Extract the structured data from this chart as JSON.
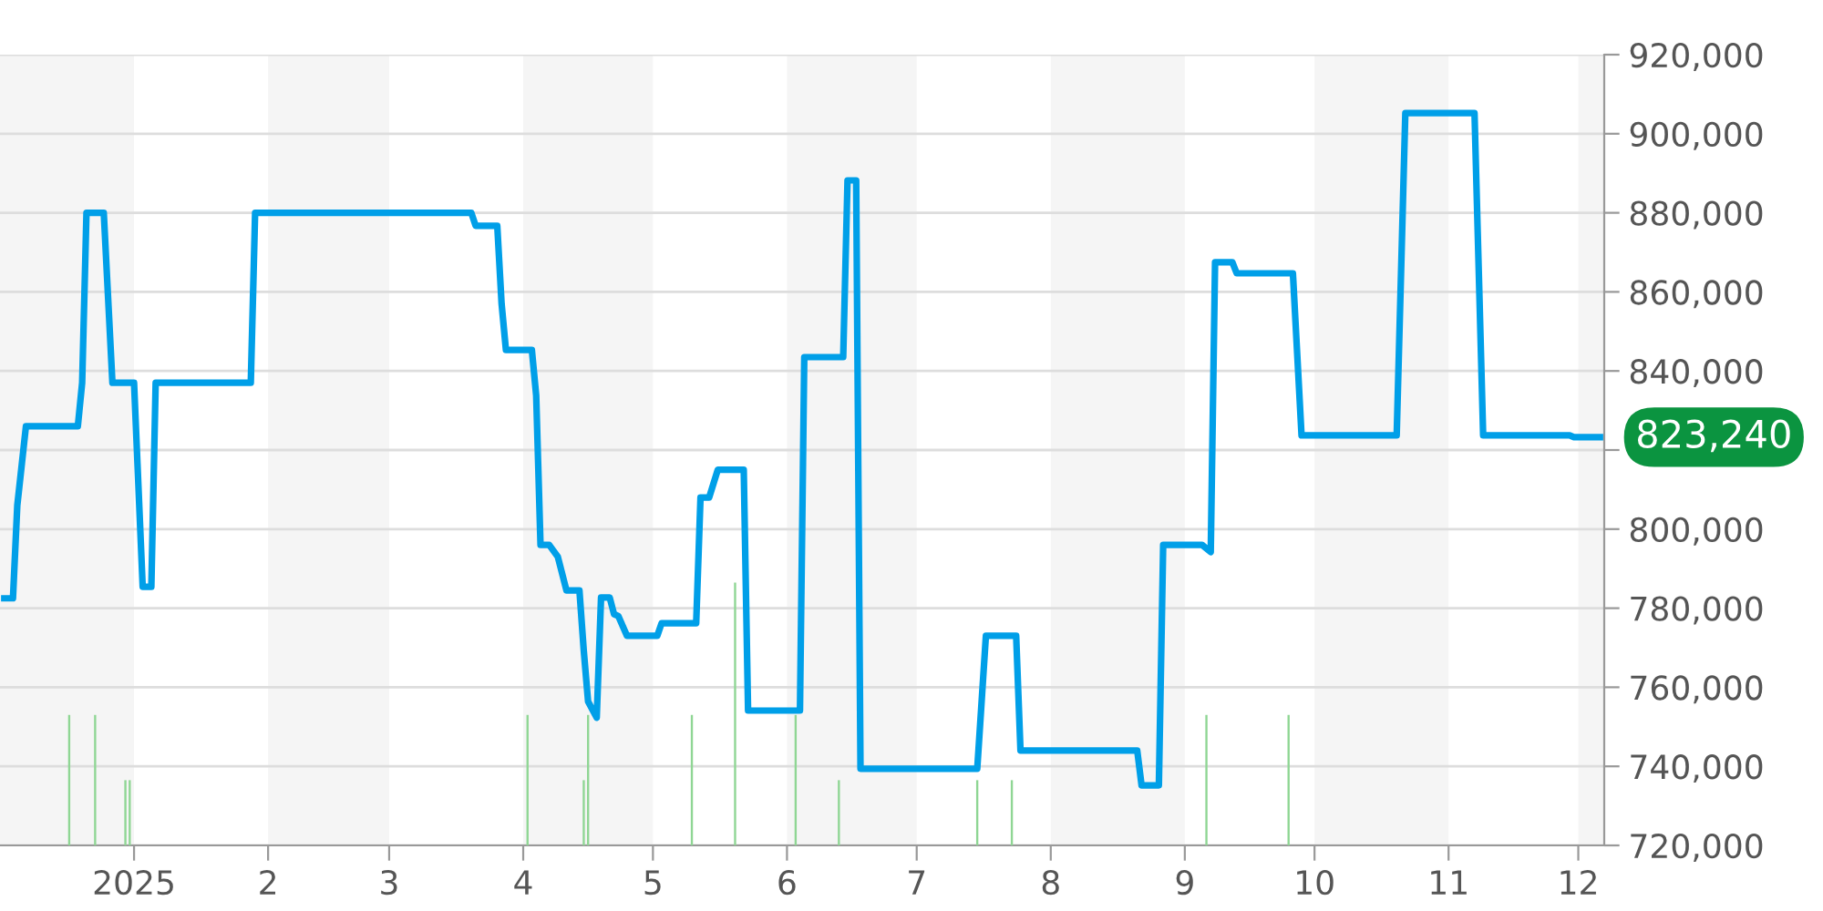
{
  "chart_data": {
    "type": "line",
    "x": [
      "2024-12-02",
      "2024-12-04",
      "2024-12-05",
      "2024-12-07",
      "2024-12-19",
      "2024-12-20",
      "2024-12-21",
      "2024-12-25",
      "2024-12-27",
      "2025-01-01",
      "2025-01-03",
      "2025-01-05",
      "2025-01-06",
      "2025-01-28",
      "2025-01-29",
      "2025-03-20",
      "2025-03-21",
      "2025-03-26",
      "2025-03-27",
      "2025-03-28",
      "2025-04-03",
      "2025-04-04",
      "2025-04-05",
      "2025-04-07",
      "2025-04-09",
      "2025-04-11",
      "2025-04-14",
      "2025-04-15",
      "2025-04-16",
      "2025-04-18",
      "2025-04-19",
      "2025-04-21",
      "2025-04-22",
      "2025-04-23",
      "2025-04-25",
      "2025-05-02",
      "2025-05-03",
      "2025-05-11",
      "2025-05-12",
      "2025-05-14",
      "2025-05-16",
      "2025-05-22",
      "2025-05-23",
      "2025-06-04",
      "2025-06-05",
      "2025-06-14",
      "2025-06-15",
      "2025-06-17",
      "2025-06-18",
      "2025-07-15",
      "2025-07-17",
      "2025-07-24",
      "2025-07-25",
      "2025-08-21",
      "2025-08-22",
      "2025-08-26",
      "2025-08-27",
      "2025-09-05",
      "2025-09-07",
      "2025-09-08",
      "2025-09-12",
      "2025-09-13",
      "2025-09-26",
      "2025-09-28",
      "2025-10-20",
      "2025-10-22",
      "2025-11-07",
      "2025-11-09",
      "2025-11-29",
      "2025-11-30",
      "2025-12-06"
    ],
    "series": [
      {
        "color": "#009fe8",
        "values": [
          782500,
          782500,
          806000,
          826000,
          826000,
          837000,
          880000,
          880000,
          837000,
          837000,
          785400,
          785400,
          837000,
          837000,
          880000,
          880000,
          876700,
          876700,
          857000,
          845300,
          845300,
          833800,
          796000,
          796000,
          793000,
          784500,
          784500,
          769300,
          756400,
          752300,
          782700,
          782700,
          778500,
          778000,
          773000,
          773000,
          776200,
          776200,
          808000,
          808000,
          815000,
          815000,
          754100,
          754100,
          843500,
          843500,
          888200,
          888200,
          739400,
          739400,
          773000,
          773000,
          744000,
          744000,
          735200,
          735200,
          796000,
          796000,
          794200,
          867500,
          867500,
          864700,
          864700,
          823700,
          823700,
          905200,
          905200,
          823700,
          823700,
          823240,
          823240
        ]
      },
      {
        "type": "bar",
        "color": "#8fd694",
        "x": [
          "2024-12-17",
          "2024-12-23",
          "2024-12-30",
          "2024-12-31",
          "2025-04-02",
          "2025-04-15",
          "2025-04-16",
          "2025-05-10",
          "2025-05-20",
          "2025-06-03",
          "2025-06-13",
          "2025-07-15",
          "2025-07-23",
          "2025-09-06",
          "2025-09-25"
        ],
        "base": [
          720000,
          720000,
          720000,
          720000,
          720000,
          720000,
          720000,
          720000,
          720000,
          720000,
          720000,
          720000,
          720000,
          720000,
          720000
        ],
        "values": [
          33000,
          33000,
          16500,
          16500,
          33000,
          16500,
          33000,
          33000,
          66500,
          33000,
          16500,
          16500,
          16500,
          33000,
          33000
        ]
      }
    ],
    "xlim": [
      "2024-12-01",
      "2025-12-07"
    ],
    "xticks": [
      {
        "value": "2025-01-01",
        "label": "2025"
      },
      {
        "value": "2025-02-01",
        "label": "2"
      },
      {
        "value": "2025-03-01",
        "label": "3"
      },
      {
        "value": "2025-04-01",
        "label": "4"
      },
      {
        "value": "2025-05-01",
        "label": "5"
      },
      {
        "value": "2025-06-01",
        "label": "6"
      },
      {
        "value": "2025-07-01",
        "label": "7"
      },
      {
        "value": "2025-08-01",
        "label": "8"
      },
      {
        "value": "2025-09-01",
        "label": "9"
      },
      {
        "value": "2025-10-01",
        "label": "10"
      },
      {
        "value": "2025-11-01",
        "label": "11"
      },
      {
        "value": "2025-12-01",
        "label": "12"
      }
    ],
    "ylim": [
      720000,
      920000
    ],
    "yticks": [
      {
        "value": 720000,
        "label": "720,000"
      },
      {
        "value": 740000,
        "label": "740,000"
      },
      {
        "value": 760000,
        "label": "760,000"
      },
      {
        "value": 780000,
        "label": "780,000"
      },
      {
        "value": 800000,
        "label": "800,000"
      },
      {
        "value": 820000,
        "label": null
      },
      {
        "value": 840000,
        "label": "840,000"
      },
      {
        "value": 860000,
        "label": "860,000"
      },
      {
        "value": 880000,
        "label": "880,000"
      },
      {
        "value": 900000,
        "label": "900,000"
      },
      {
        "value": 920000,
        "label": "920,000"
      }
    ],
    "bands": [
      {
        "axis": "x",
        "from": "2024-12-01",
        "to": "2025-01-01",
        "color": "#f5f5f5"
      },
      {
        "axis": "x",
        "from": "2025-02-01",
        "to": "2025-03-01",
        "color": "#f5f5f5"
      },
      {
        "axis": "x",
        "from": "2025-04-01",
        "to": "2025-05-01",
        "color": "#f5f5f5"
      },
      {
        "axis": "x",
        "from": "2025-06-01",
        "to": "2025-07-01",
        "color": "#f5f5f5"
      },
      {
        "axis": "x",
        "from": "2025-08-01",
        "to": "2025-09-01",
        "color": "#f5f5f5"
      },
      {
        "axis": "x",
        "from": "2025-10-01",
        "to": "2025-11-01",
        "color": "#f5f5f5"
      },
      {
        "axis": "x",
        "from": "2025-12-01",
        "to": "2025-12-07",
        "color": "#f5f5f5"
      }
    ],
    "annotations": [
      {
        "text": "823,240",
        "x": "2025-12-06",
        "y": 823240
      }
    ],
    "grid": "y"
  }
}
